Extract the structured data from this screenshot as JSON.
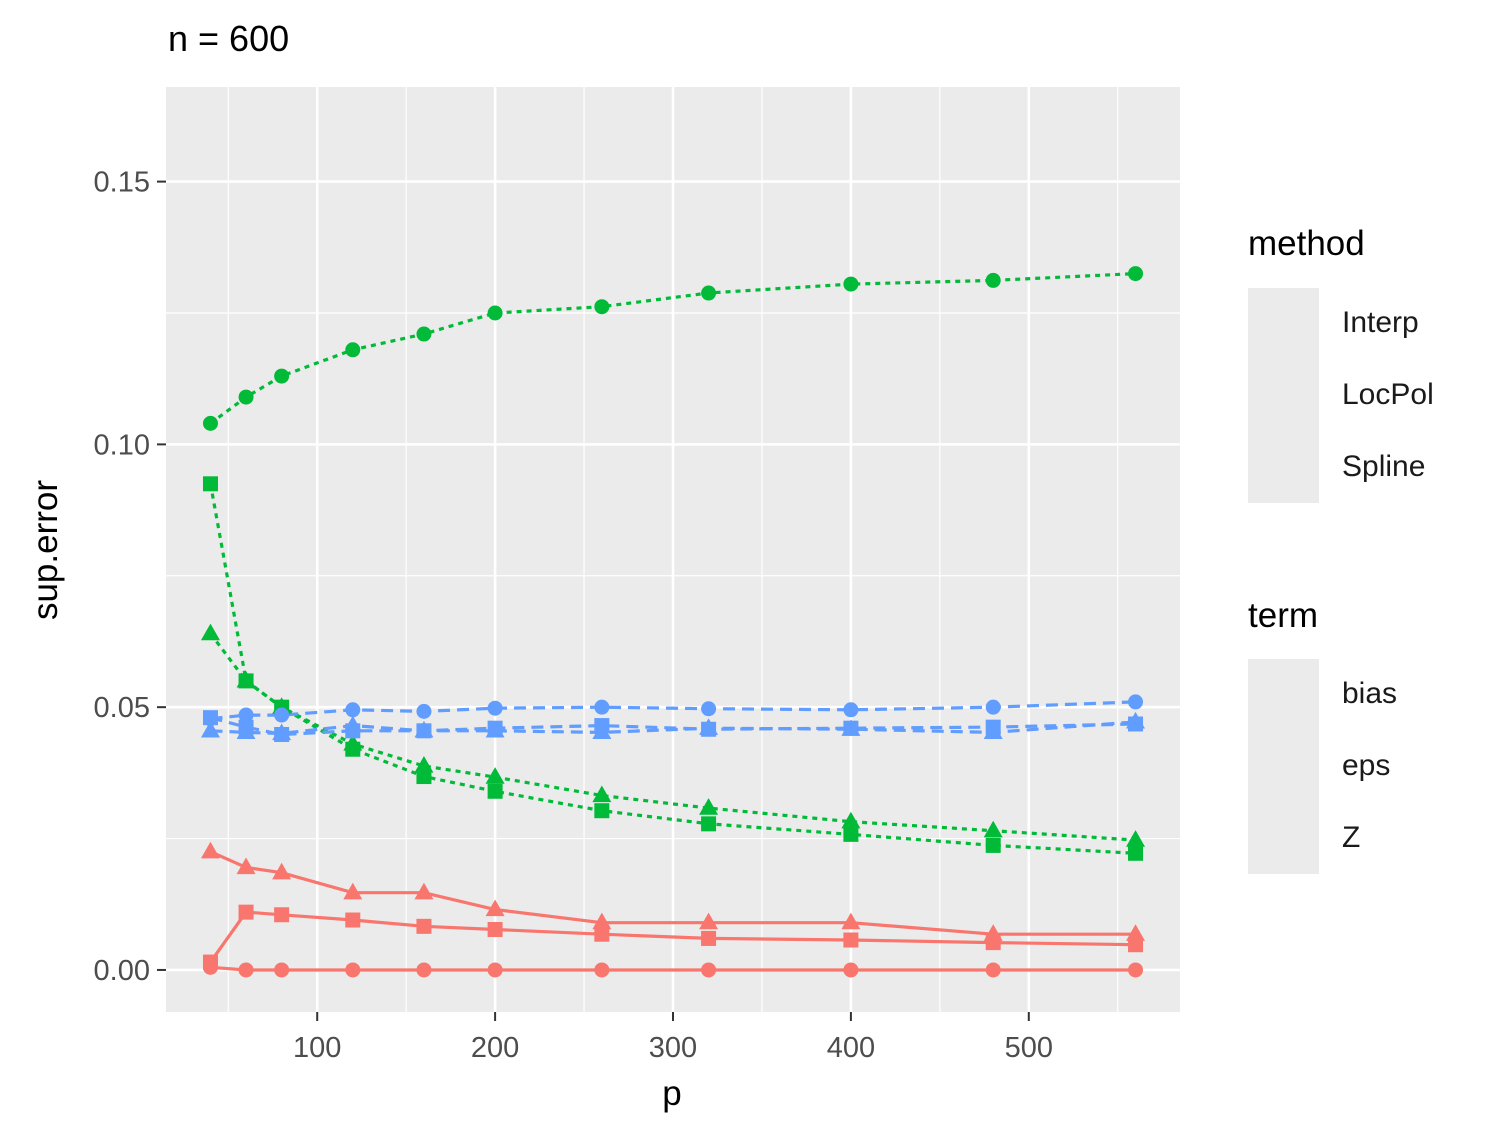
{
  "chart_data": {
    "type": "line",
    "title": "n = 600",
    "xlabel": "p",
    "ylabel": "sup.error",
    "xlim": [
      15,
      585
    ],
    "ylim": [
      -0.008,
      0.168
    ],
    "x_ticks": [
      100,
      200,
      300,
      400,
      500
    ],
    "x_tick_labels": [
      "100",
      "200",
      "300",
      "400",
      "500"
    ],
    "y_ticks": [
      0.0,
      0.05,
      0.1,
      0.15
    ],
    "y_tick_labels": [
      "0.00",
      "0.05",
      "0.10",
      "0.15"
    ],
    "grid": true,
    "legend_placement": "right",
    "x": [
      40,
      60,
      80,
      120,
      160,
      200,
      260,
      320,
      400,
      480,
      560
    ],
    "legends": {
      "method": {
        "title": "method",
        "entries": [
          {
            "label": "Interp",
            "shape": "circle"
          },
          {
            "label": "LocPol",
            "shape": "triangle"
          },
          {
            "label": "Spline",
            "shape": "square"
          }
        ]
      },
      "term": {
        "title": "term",
        "entries": [
          {
            "label": "bias",
            "color": "#F8766D",
            "linetype": "solid"
          },
          {
            "label": "eps",
            "color": "#00BA38",
            "linetype": "dotted"
          },
          {
            "label": "Z",
            "color": "#619CFF",
            "linetype": "dashed"
          }
        ]
      }
    },
    "series": [
      {
        "term": "bias",
        "method": "Interp",
        "color": "#F8766D",
        "linetype": "solid",
        "shape": "circle",
        "values": [
          0.0005,
          0.0,
          0.0,
          0.0,
          0.0,
          0.0,
          0.0,
          0.0,
          0.0,
          0.0,
          0.0
        ]
      },
      {
        "term": "bias",
        "method": "LocPol",
        "color": "#F8766D",
        "linetype": "solid",
        "shape": "triangle",
        "values": [
          0.0225,
          0.0195,
          0.0185,
          0.0147,
          0.0147,
          0.0115,
          0.009,
          0.009,
          0.009,
          0.0068,
          0.0068
        ]
      },
      {
        "term": "bias",
        "method": "Spline",
        "color": "#F8766D",
        "linetype": "solid",
        "shape": "square",
        "values": [
          0.0015,
          0.011,
          0.0105,
          0.0095,
          0.0083,
          0.0077,
          0.0068,
          0.006,
          0.0057,
          0.0052,
          0.0048
        ]
      },
      {
        "term": "eps",
        "method": "Interp",
        "color": "#00BA38",
        "linetype": "dotted",
        "shape": "circle",
        "values": [
          0.104,
          0.109,
          0.113,
          0.118,
          0.121,
          0.125,
          0.1262,
          0.1288,
          0.1305,
          0.1312,
          0.1325
        ]
      },
      {
        "term": "eps",
        "method": "LocPol",
        "color": "#00BA38",
        "linetype": "dotted",
        "shape": "triangle",
        "values": [
          0.064,
          0.055,
          0.05,
          0.043,
          0.0388,
          0.0367,
          0.0332,
          0.0308,
          0.0282,
          0.0265,
          0.0247
        ]
      },
      {
        "term": "eps",
        "method": "Spline",
        "color": "#00BA38",
        "linetype": "dotted",
        "shape": "square",
        "values": [
          0.0925,
          0.055,
          0.05,
          0.042,
          0.0368,
          0.034,
          0.0303,
          0.0278,
          0.0258,
          0.0237,
          0.0222
        ]
      },
      {
        "term": "Z",
        "method": "Interp",
        "color": "#619CFF",
        "linetype": "dashed",
        "shape": "circle",
        "values": [
          0.0478,
          0.0485,
          0.0485,
          0.0495,
          0.0492,
          0.0498,
          0.05,
          0.0497,
          0.0495,
          0.05,
          0.051
        ]
      },
      {
        "term": "Z",
        "method": "LocPol",
        "color": "#619CFF",
        "linetype": "dashed",
        "shape": "triangle",
        "values": [
          0.0455,
          0.0452,
          0.045,
          0.0465,
          0.0455,
          0.0455,
          0.0452,
          0.046,
          0.0458,
          0.0452,
          0.0472
        ]
      },
      {
        "term": "Z",
        "method": "Spline",
        "color": "#619CFF",
        "linetype": "dashed",
        "shape": "square",
        "values": [
          0.048,
          0.0462,
          0.0448,
          0.0455,
          0.0455,
          0.046,
          0.0465,
          0.0458,
          0.046,
          0.0462,
          0.0468
        ]
      }
    ]
  }
}
